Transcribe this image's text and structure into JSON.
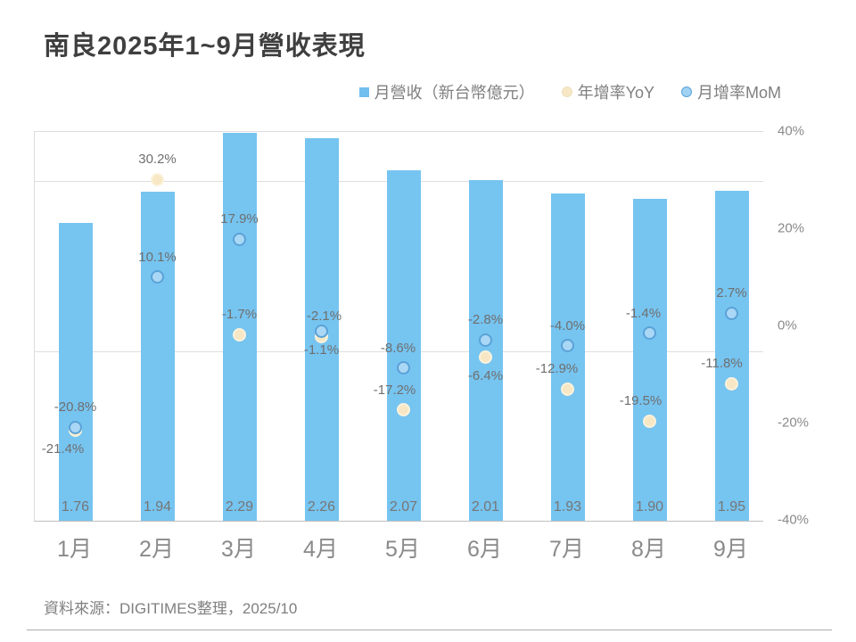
{
  "title": "南良2025年1~9月營收表現",
  "legend": [
    {
      "label": "月營收（新台幣億元）",
      "marker": "square-icon",
      "color": "#72BEED"
    },
    {
      "label": "年增率YoY",
      "marker": "circle-icon",
      "color": "#F7E7C4"
    },
    {
      "label": "月增率MoM",
      "marker": "circle-icon",
      "color": "#9FD2F3"
    }
  ],
  "axis": {
    "right_ticks": [
      "40%",
      "20%",
      "0%",
      "-20%",
      "-40%"
    ]
  },
  "source": "資料來源：DIGITIMES整理，2025/10",
  "chart_data": {
    "type": "bar",
    "categories": [
      "1月",
      "2月",
      "3月",
      "4月",
      "5月",
      "6月",
      "7月",
      "8月",
      "9月"
    ],
    "series": [
      {
        "name": "月營收（新台幣億元）",
        "type": "bar",
        "color": "#76C4F0",
        "values": [
          1.76,
          1.94,
          2.29,
          2.26,
          2.07,
          2.01,
          1.93,
          1.9,
          1.95
        ],
        "labels": [
          "1.76",
          "1.94",
          "2.29",
          "2.26",
          "2.07",
          "2.01",
          "1.93",
          "1.90",
          "1.95"
        ]
      },
      {
        "name": "年增率YoY",
        "type": "scatter",
        "unit": "%",
        "color": "#F7E7C4",
        "values": [
          -21.4,
          30.2,
          -1.7,
          -2.1,
          -17.2,
          -6.4,
          -12.9,
          -19.5,
          -11.8
        ],
        "labels": [
          "-21.4%",
          "30.2%",
          "-1.7%",
          "-2.1%",
          "-17.2%",
          "-6.4%",
          "-12.9%",
          "-19.5%",
          "-11.8%"
        ]
      },
      {
        "name": "月增率MoM",
        "type": "scatter",
        "unit": "%",
        "color": "#A9D7F5",
        "values": [
          -20.8,
          10.1,
          17.9,
          -1.1,
          -8.6,
          -2.8,
          -4.0,
          -1.4,
          2.7
        ],
        "labels": [
          "-20.8%",
          "10.1%",
          "17.9%",
          "-1.1%",
          "-8.6%",
          "-2.8%",
          "-4.0%",
          "-1.4%",
          "2.7%"
        ]
      }
    ],
    "label_layout": {
      "yoy_pos": [
        "below",
        "above",
        "above",
        "above",
        "above",
        "below",
        "above",
        "above",
        "above"
      ],
      "yoy_dx": [
        -14,
        0,
        0,
        3,
        -10,
        0,
        -12,
        -10,
        -11
      ],
      "mom_pos": [
        "above",
        "above",
        "above",
        "below",
        "above",
        "above",
        "above",
        "above",
        "above"
      ],
      "mom_dx": [
        0,
        0,
        0,
        0,
        -6,
        0,
        0,
        -7,
        0
      ]
    },
    "pct_axis": {
      "min": -40,
      "max": 40,
      "ticks": [
        40,
        20,
        0,
        -20,
        -40
      ],
      "side": "right"
    },
    "value_axis": {
      "gridlines_at": [
        1.0,
        2.0
      ],
      "min": 0
    },
    "grid": "horizontal",
    "legend_position": "top-right"
  }
}
